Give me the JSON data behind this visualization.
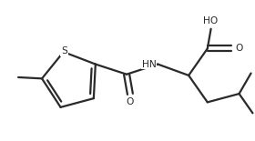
{
  "bg_color": "#ffffff",
  "line_color": "#2a2a2a",
  "text_color": "#2a2a2a",
  "lw": 1.6,
  "fs": 7.2,
  "fig_w": 2.8,
  "fig_h": 1.55,
  "dpi": 100,
  "xlim": [
    0,
    280
  ],
  "ylim": [
    0,
    155
  ]
}
